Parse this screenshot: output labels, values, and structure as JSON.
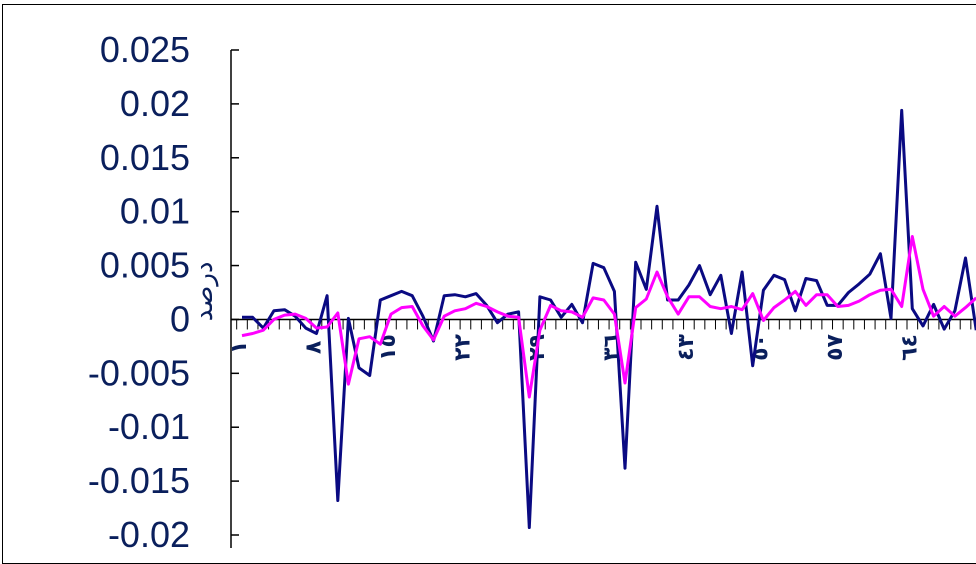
{
  "chart_data": {
    "type": "line",
    "title": "",
    "xlabel": "",
    "ylabel": "درصد",
    "ylim": [
      -0.02,
      0.025
    ],
    "yticks": [
      "0.025",
      "0.02",
      "0.015",
      "0.01",
      "0.005",
      "0",
      "-0.005",
      "-0.01",
      "-0.015",
      "-0.02"
    ],
    "xtick_labels": [
      "١",
      "٨",
      "١٥",
      "٢٢",
      "٢٩",
      "٣٦",
      "٤٣",
      "٥٠",
      "٥٧",
      "٦٤"
    ],
    "xtick_positions": [
      1,
      8,
      15,
      22,
      29,
      36,
      43,
      50,
      57,
      64
    ],
    "x_count": 70,
    "grid": false,
    "colors": {
      "series1": "#0a0a82",
      "series2": "#ff00ff",
      "axis": "#000000",
      "text": "#0a1f5c"
    },
    "series": [
      {
        "values": [
          0.0002,
          0.0002,
          -0.0008,
          0.0008,
          0.0009,
          0.0003,
          -0.0008,
          -0.0013,
          0.0022,
          -0.0168,
          0.0001,
          -0.0045,
          -0.0052,
          0.0018,
          0.0022,
          0.0026,
          0.0022,
          0.0003,
          -0.002,
          0.0022,
          0.0023,
          0.0021,
          0.0024,
          0.0013,
          -0.0003,
          0.0005,
          0.0007,
          -0.0193,
          0.0021,
          0.0018,
          0.0002,
          0.0014,
          -0.0003,
          0.0052,
          0.0048,
          0.0026,
          -0.0138,
          0.0053,
          0.0028,
          0.0105,
          0.0018,
          0.0018,
          0.0032,
          0.005,
          0.0023,
          0.0041,
          -0.0013,
          0.0044,
          -0.0043,
          0.0027,
          0.0041,
          0.0037,
          0.0008,
          0.0038,
          0.0036,
          0.0013,
          0.0013,
          0.0025,
          0.0033,
          0.0042,
          0.0061,
          0.0001,
          0.0194,
          0.001,
          -0.0006,
          0.0014,
          -0.0009,
          0.0008,
          0.0057,
          -0.001
        ]
      },
      {
        "values": [
          -0.0015,
          -0.0013,
          -0.001,
          0.0,
          0.0004,
          0.0005,
          0.0001,
          -0.0008,
          -0.0007,
          0.0006,
          -0.006,
          -0.0018,
          -0.0016,
          -0.0023,
          0.0005,
          0.0011,
          0.0012,
          -0.0006,
          -0.0019,
          0.0003,
          0.0008,
          0.001,
          0.0015,
          0.0012,
          0.0007,
          0.0003,
          0.0002,
          -0.0072,
          -0.001,
          0.0013,
          0.0008,
          0.0007,
          0.0002,
          0.002,
          0.0018,
          0.0005,
          -0.0059,
          0.0011,
          0.0019,
          0.0044,
          0.0021,
          0.0005,
          0.0021,
          0.0021,
          0.0012,
          0.001,
          0.0012,
          0.0009,
          0.0024,
          -0.0001,
          0.0011,
          0.0018,
          0.0026,
          0.0013,
          0.0023,
          0.0023,
          0.0012,
          0.0013,
          0.0017,
          0.0023,
          0.0027,
          0.0028,
          0.0012,
          0.0077,
          0.0028,
          0.0003,
          0.0012,
          0.0003,
          0.0011,
          0.002
        ]
      }
    ]
  }
}
